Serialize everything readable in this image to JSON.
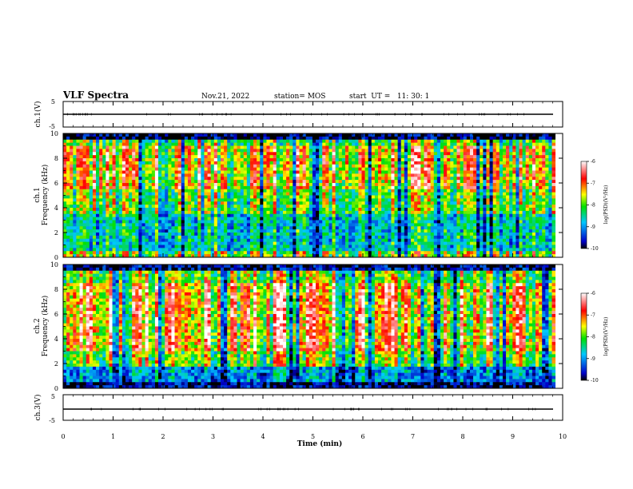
{
  "header": {
    "title": "VLF Spectra",
    "date": "Nov.21, 2022",
    "station": "station= MOS",
    "start": "start  UT =   11: 30: 1"
  },
  "chart_data": [
    {
      "type": "line",
      "name": "channel-1-waveform",
      "ylabel": "ch.1(V)",
      "ylim": [
        -5,
        5
      ],
      "yticks": [
        "5",
        "-5"
      ],
      "level": 0
    },
    {
      "type": "heatmap",
      "name": "channel-1-spectrogram",
      "ylabel_top": "ch.1",
      "ylabel": "Frequency (kHz)",
      "ylim": [
        0,
        10
      ],
      "yticks": [
        "0",
        "2",
        "4",
        "6",
        "8",
        "10"
      ],
      "xlim": [
        0,
        9.85
      ],
      "colorbar": {
        "label": "log(PSD)(V²/Hz)",
        "ticks": [
          "-6",
          "-7",
          "-8",
          "-9",
          "-10"
        ],
        "range": [
          -10,
          -6
        ]
      }
    },
    {
      "type": "heatmap",
      "name": "channel-2-spectrogram",
      "ylabel_top": "ch.2",
      "ylabel": "Frequency (kHz)",
      "ylim": [
        0,
        10
      ],
      "yticks": [
        "0",
        "2",
        "4",
        "6",
        "8",
        "10"
      ],
      "xlim": [
        0,
        9.85
      ],
      "colorbar": {
        "label": "log(PSD)(V²/Hz)",
        "ticks": [
          "-6",
          "-7",
          "-8",
          "-9",
          "-10"
        ],
        "range": [
          -10,
          -6
        ]
      }
    },
    {
      "type": "line",
      "name": "channel-3-waveform",
      "ylabel": "ch.3(V)",
      "ylim": [
        -5,
        5
      ],
      "yticks": [
        "5",
        "-5"
      ],
      "level": 0
    }
  ],
  "xaxis": {
    "label": "Time (min)",
    "xlim": [
      0,
      10
    ],
    "ticks": [
      "0",
      "1",
      "2",
      "3",
      "4",
      "5",
      "6",
      "7",
      "8",
      "9",
      "10"
    ]
  }
}
